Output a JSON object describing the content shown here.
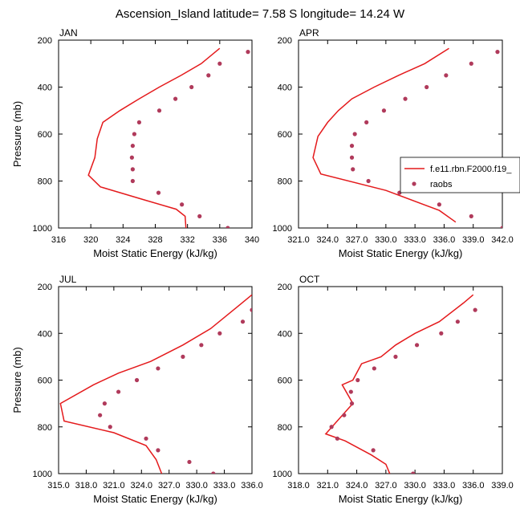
{
  "title": "Ascension_Island  latitude= 7.58 S longitude= 14.24 W",
  "colors": {
    "model": "#e41a1c",
    "obs": "#b03a5b",
    "axis": "#000000"
  },
  "legend": {
    "model_label": "f.e11.rbn.F2000.f19_",
    "obs_label": "raobs"
  },
  "chart_data": [
    {
      "type": "line",
      "panel": "JAN",
      "xlabel": "Moist Static Energy (kJ/kg)",
      "ylabel": "Pressure (mb)",
      "xlim": [
        316,
        340
      ],
      "ylim": [
        1000,
        200
      ],
      "y_inverted": true,
      "xticks": [
        "316",
        "320",
        "324",
        "328",
        "332",
        "336",
        "340"
      ],
      "yticks": [
        "200",
        "400",
        "600",
        "800",
        "1000"
      ],
      "series": [
        {
          "name": "f.e11.rbn.F2000.f19_",
          "kind": "line",
          "x": [
            336.0,
            333.7,
            331.2,
            328.5,
            326.0,
            323.6,
            321.5,
            321.0,
            320.8,
            320.5,
            319.7,
            321.2,
            326.6,
            330.6,
            331.7,
            331.8
          ],
          "y": [
            235,
            300,
            350,
            400,
            450,
            500,
            550,
            600,
            620,
            700,
            775,
            825,
            880,
            920,
            950,
            1000
          ]
        },
        {
          "name": "raobs",
          "kind": "scatter",
          "x": [
            339.5,
            336.0,
            334.6,
            332.5,
            330.5,
            328.5,
            326.0,
            325.4,
            325.2,
            325.1,
            325.2,
            325.2,
            328.4,
            331.3,
            333.5,
            337.0
          ],
          "y": [
            250,
            300,
            350,
            400,
            450,
            500,
            550,
            600,
            650,
            700,
            750,
            800,
            850,
            900,
            950,
            1000
          ]
        }
      ]
    },
    {
      "type": "line",
      "panel": "APR",
      "xlabel": "Moist Static Energy (kJ/kg)",
      "ylabel": "",
      "xlim": [
        321.0,
        342.0
      ],
      "ylim": [
        1000,
        200
      ],
      "y_inverted": true,
      "xticks": [
        "321.0",
        "324.0",
        "327.0",
        "330.0",
        "333.0",
        "336.0",
        "339.0",
        "342.0"
      ],
      "yticks": [
        "200",
        "400",
        "600",
        "800",
        "1000"
      ],
      "series": [
        {
          "name": "f.e11.rbn.F2000.f19_",
          "kind": "line",
          "x": [
            336.5,
            334.0,
            331.3,
            328.8,
            326.5,
            325.1,
            324.0,
            323.0,
            322.5,
            323.3,
            330.0,
            335.5,
            337.2
          ],
          "y": [
            235,
            300,
            350,
            400,
            450,
            500,
            550,
            610,
            700,
            770,
            840,
            925,
            975
          ]
        },
        {
          "name": "raobs",
          "kind": "scatter",
          "x": [
            341.5,
            338.8,
            336.2,
            334.2,
            332.0,
            329.8,
            328.0,
            326.8,
            326.5,
            326.5,
            326.6,
            328.2,
            331.4,
            335.5,
            338.8,
            342.0
          ],
          "y": [
            250,
            300,
            350,
            400,
            450,
            500,
            550,
            600,
            650,
            700,
            750,
            800,
            850,
            900,
            950,
            1000
          ]
        }
      ]
    },
    {
      "type": "line",
      "panel": "JUL",
      "xlabel": "Moist Static Energy (kJ/kg)",
      "ylabel": "Pressure (mb)",
      "xlim": [
        315.0,
        336.0
      ],
      "ylim": [
        1000,
        200
      ],
      "y_inverted": true,
      "xticks": [
        "315.0",
        "318.0",
        "321.0",
        "324.0",
        "327.0",
        "330.0",
        "333.0",
        "336.0"
      ],
      "yticks": [
        "200",
        "400",
        "600",
        "800",
        "1000"
      ],
      "series": [
        {
          "name": "f.e11.rbn.F2000.f19_",
          "kind": "line",
          "x": [
            336.0,
            334.0,
            331.5,
            328.5,
            325.0,
            321.5,
            318.8,
            315.2,
            315.6,
            321.0,
            324.5,
            325.6,
            326.2
          ],
          "y": [
            235,
            300,
            380,
            450,
            520,
            570,
            620,
            700,
            775,
            825,
            880,
            940,
            1000
          ]
        },
        {
          "name": "raobs",
          "kind": "scatter",
          "x": [
            336.0,
            335.0,
            332.5,
            330.5,
            328.5,
            325.8,
            323.5,
            321.5,
            320.0,
            319.5,
            320.6,
            324.5,
            325.8,
            329.2,
            331.8
          ],
          "y": [
            300,
            350,
            400,
            450,
            500,
            550,
            600,
            650,
            700,
            750,
            800,
            850,
            900,
            950,
            1000
          ]
        }
      ]
    },
    {
      "type": "line",
      "panel": "OCT",
      "xlabel": "Moist Static Energy (kJ/kg)",
      "ylabel": "",
      "xlim": [
        318.0,
        339.0
      ],
      "ylim": [
        1000,
        200
      ],
      "y_inverted": true,
      "xticks": [
        "318.0",
        "321.0",
        "324.0",
        "327.0",
        "330.0",
        "333.0",
        "336.0",
        "339.0"
      ],
      "yticks": [
        "200",
        "400",
        "600",
        "800",
        "1000"
      ],
      "series": [
        {
          "name": "f.e11.rbn.F2000.f19_",
          "kind": "line",
          "x": [
            336.0,
            335.0,
            332.5,
            330.0,
            328.0,
            326.5,
            324.5,
            323.6,
            322.5,
            323.6,
            320.8,
            322.8,
            325.5,
            327.0,
            327.4
          ],
          "y": [
            235,
            270,
            350,
            400,
            450,
            500,
            530,
            600,
            620,
            700,
            830,
            860,
            920,
            960,
            1000
          ]
        },
        {
          "name": "raobs",
          "kind": "scatter",
          "x": [
            336.2,
            334.4,
            332.7,
            330.2,
            328.0,
            325.8,
            324.1,
            323.4,
            323.5,
            322.7,
            321.4,
            322.0,
            325.7,
            329.8
          ],
          "y": [
            300,
            350,
            400,
            450,
            500,
            550,
            600,
            650,
            700,
            750,
            800,
            850,
            900,
            1000
          ]
        }
      ]
    }
  ]
}
